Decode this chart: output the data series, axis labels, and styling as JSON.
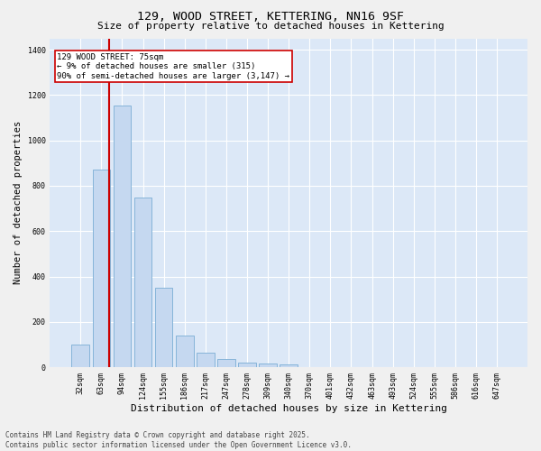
{
  "title1": "129, WOOD STREET, KETTERING, NN16 9SF",
  "title2": "Size of property relative to detached houses in Kettering",
  "xlabel": "Distribution of detached houses by size in Kettering",
  "ylabel": "Number of detached properties",
  "categories": [
    "32sqm",
    "63sqm",
    "94sqm",
    "124sqm",
    "155sqm",
    "186sqm",
    "217sqm",
    "247sqm",
    "278sqm",
    "309sqm",
    "340sqm",
    "370sqm",
    "401sqm",
    "432sqm",
    "463sqm",
    "493sqm",
    "524sqm",
    "555sqm",
    "586sqm",
    "616sqm",
    "647sqm"
  ],
  "values": [
    100,
    870,
    1155,
    750,
    350,
    140,
    62,
    35,
    22,
    15,
    14,
    0,
    0,
    0,
    0,
    0,
    0,
    0,
    0,
    0,
    0
  ],
  "bar_color": "#c5d8f0",
  "bar_edge_color": "#7aadd4",
  "vline_x_index": 1,
  "vline_color": "#cc0000",
  "annotation_text": "129 WOOD STREET: 75sqm\n← 9% of detached houses are smaller (315)\n90% of semi-detached houses are larger (3,147) →",
  "annotation_box_facecolor": "#ffffff",
  "annotation_box_edgecolor": "#cc0000",
  "ylim": [
    0,
    1450
  ],
  "yticks": [
    0,
    200,
    400,
    600,
    800,
    1000,
    1200,
    1400
  ],
  "fig_facecolor": "#f0f0f0",
  "ax_facecolor": "#dce8f7",
  "grid_color": "#ffffff",
  "title_fontsize": 9.5,
  "subtitle_fontsize": 8,
  "tick_fontsize": 6,
  "ylabel_fontsize": 7.5,
  "xlabel_fontsize": 8,
  "annotation_fontsize": 6.5,
  "footer_fontsize": 5.5,
  "footer_text": "Contains HM Land Registry data © Crown copyright and database right 2025.\nContains public sector information licensed under the Open Government Licence v3.0."
}
